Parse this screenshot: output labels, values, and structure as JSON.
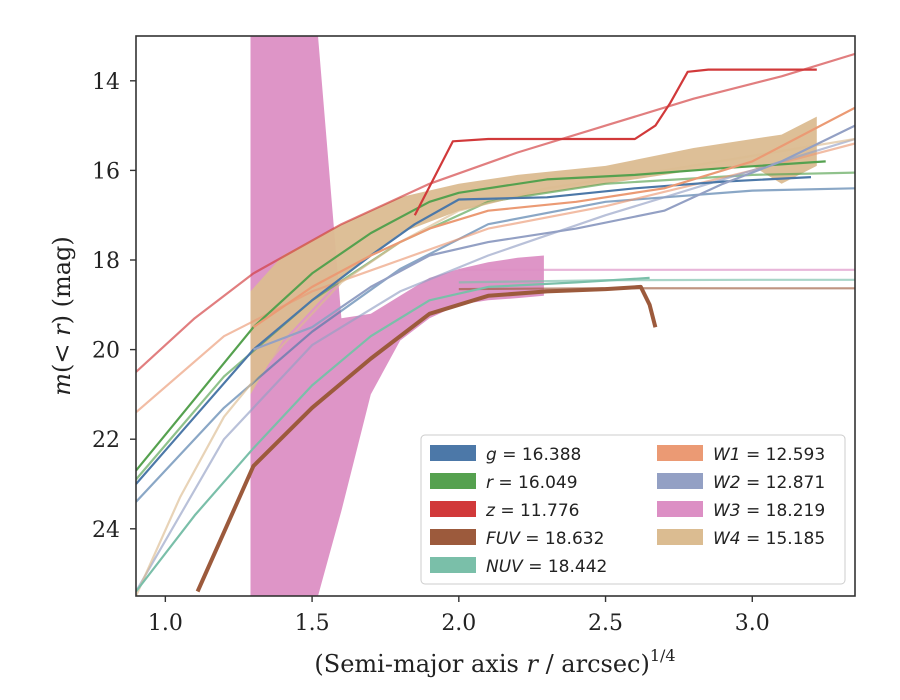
{
  "chart_data": {
    "type": "line",
    "xlabel": "(Semi-major axis r / arcsec)^{1/4}",
    "ylabel": "m(< r) (mag)",
    "xlim": [
      0.9,
      3.35
    ],
    "ylim": [
      25.5,
      13.0
    ],
    "y_inverted": true,
    "x_ticks": [
      "1.0",
      "1.5",
      "2.0",
      "2.5",
      "3.0"
    ],
    "y_ticks": [
      "14",
      "16",
      "18",
      "20",
      "22",
      "24"
    ],
    "legend_position": "lower-right",
    "legend": [
      {
        "band": "g",
        "value": "16.388",
        "color": "#4c78a8"
      },
      {
        "band": "r",
        "value": "16.049",
        "color": "#55a14f"
      },
      {
        "band": "z",
        "value": "11.776",
        "color": "#d1393a"
      },
      {
        "band": "FUV",
        "value": "18.632",
        "color": "#9c5a3c"
      },
      {
        "band": "NUV",
        "value": "18.442",
        "color": "#7abfa9"
      },
      {
        "band": "W1",
        "value": "12.593",
        "color": "#eb9a74"
      },
      {
        "band": "W2",
        "value": "12.871",
        "color": "#93a0c4"
      },
      {
        "band": "W3",
        "value": "18.219",
        "color": "#dc8fc4"
      },
      {
        "band": "W4",
        "value": "15.185",
        "color": "#dbbc91"
      }
    ],
    "series": [
      {
        "name": "g",
        "type": "observed",
        "x": [
          0.9,
          1.1,
          1.3,
          1.5,
          1.7,
          1.85,
          2.0,
          2.3,
          2.6,
          2.9,
          3.2
        ],
        "y": [
          23.0,
          21.5,
          20.0,
          18.9,
          17.9,
          17.2,
          16.65,
          16.6,
          16.4,
          16.25,
          16.15
        ]
      },
      {
        "name": "g",
        "type": "model",
        "x": [
          0.9,
          1.2,
          1.5,
          1.8,
          2.1,
          2.5,
          3.0,
          3.35
        ],
        "y": [
          23.4,
          21.3,
          19.6,
          18.2,
          17.2,
          16.7,
          16.45,
          16.4
        ]
      },
      {
        "name": "r",
        "type": "observed",
        "x": [
          0.9,
          1.1,
          1.3,
          1.5,
          1.7,
          1.9,
          2.0,
          2.3,
          2.6,
          2.9,
          3.25
        ],
        "y": [
          22.7,
          21.1,
          19.5,
          18.3,
          17.4,
          16.7,
          16.5,
          16.2,
          16.1,
          15.95,
          15.8
        ]
      },
      {
        "name": "r",
        "type": "model",
        "x": [
          0.9,
          1.2,
          1.5,
          1.8,
          2.1,
          2.5,
          3.0,
          3.35
        ],
        "y": [
          22.9,
          20.6,
          18.9,
          17.6,
          16.7,
          16.3,
          16.1,
          16.05
        ]
      },
      {
        "name": "z",
        "type": "observed",
        "x": [
          1.85,
          1.98,
          2.1,
          2.4,
          2.6,
          2.67,
          2.72,
          2.78,
          2.85,
          3.0,
          3.22
        ],
        "y": [
          17.0,
          15.35,
          15.3,
          15.3,
          15.3,
          15.0,
          14.5,
          13.8,
          13.75,
          13.75,
          13.75
        ]
      },
      {
        "name": "z",
        "type": "model",
        "x": [
          0.9,
          1.1,
          1.3,
          1.6,
          1.9,
          2.2,
          2.5,
          2.8,
          3.1,
          3.35
        ],
        "y": [
          20.5,
          19.3,
          18.3,
          17.2,
          16.3,
          15.6,
          15.0,
          14.4,
          13.9,
          13.4
        ]
      },
      {
        "name": "FUV",
        "type": "observed",
        "x": [
          1.11,
          1.3,
          1.5,
          1.7,
          1.9,
          2.1,
          2.3,
          2.5,
          2.62,
          2.65,
          2.67
        ],
        "y": [
          25.4,
          22.6,
          21.3,
          20.2,
          19.2,
          18.8,
          18.7,
          18.65,
          18.6,
          19.0,
          19.5
        ]
      },
      {
        "name": "FUV",
        "type": "model",
        "x": [
          2.0,
          2.5,
          3.0,
          3.35
        ],
        "y": [
          18.65,
          18.63,
          18.632,
          18.632
        ]
      },
      {
        "name": "NUV",
        "type": "observed",
        "x": [
          0.9,
          1.1,
          1.3,
          1.5,
          1.7,
          1.9,
          2.1,
          2.4,
          2.65
        ],
        "y": [
          25.4,
          23.7,
          22.2,
          20.8,
          19.7,
          18.9,
          18.6,
          18.5,
          18.4
        ]
      },
      {
        "name": "NUV",
        "type": "model",
        "x": [
          2.0,
          2.5,
          3.0,
          3.35
        ],
        "y": [
          18.5,
          18.45,
          18.442,
          18.442
        ]
      },
      {
        "name": "W1",
        "type": "observed",
        "x": [
          1.3,
          1.5,
          1.7,
          1.9,
          2.1,
          2.4,
          2.7,
          3.0,
          3.35
        ],
        "y": [
          19.5,
          18.6,
          17.9,
          17.3,
          16.9,
          16.7,
          16.4,
          15.8,
          14.6
        ]
      },
      {
        "name": "W1",
        "type": "model",
        "x": [
          0.9,
          1.2,
          1.5,
          1.8,
          2.1,
          2.5,
          3.0,
          3.35
        ],
        "y": [
          21.4,
          19.7,
          18.7,
          18.0,
          17.3,
          16.8,
          16.0,
          15.4
        ]
      },
      {
        "name": "W2",
        "type": "observed",
        "x": [
          1.3,
          1.5,
          1.7,
          1.9,
          2.1,
          2.4,
          2.7,
          2.9,
          3.1,
          3.35
        ],
        "y": [
          20.0,
          19.5,
          18.6,
          17.9,
          17.6,
          17.3,
          16.9,
          16.3,
          15.8,
          15.0
        ]
      },
      {
        "name": "W2",
        "type": "model",
        "x": [
          0.9,
          1.2,
          1.5,
          1.8,
          2.1,
          2.5,
          3.0,
          3.35
        ],
        "y": [
          25.4,
          22.0,
          19.9,
          18.7,
          17.9,
          17.0,
          16.0,
          15.3
        ]
      },
      {
        "name": "W3",
        "type": "observed_band",
        "x": [
          1.29,
          1.4,
          1.52,
          1.6,
          1.7,
          1.8,
          1.9,
          2.0,
          2.1,
          2.2,
          2.29
        ],
        "y_low": [
          25.5,
          25.5,
          25.5,
          23.6,
          21.0,
          19.8,
          19.3,
          19.0,
          18.9,
          18.85,
          18.8
        ],
        "y_high": [
          13.0,
          13.0,
          13.0,
          19.3,
          19.2,
          18.8,
          18.4,
          18.2,
          18.05,
          17.95,
          17.9
        ]
      },
      {
        "name": "W3",
        "type": "model",
        "x": [
          2.0,
          2.5,
          3.0,
          3.35
        ],
        "y": [
          18.22,
          18.219,
          18.219,
          18.219
        ]
      },
      {
        "name": "W4",
        "type": "observed_band",
        "x": [
          1.29,
          1.4,
          1.6,
          1.8,
          2.0,
          2.2,
          2.5,
          2.8,
          3.0,
          3.1,
          3.22
        ],
        "y_low": [
          21.0,
          19.8,
          18.4,
          17.4,
          16.9,
          16.6,
          16.3,
          16.0,
          15.9,
          16.3,
          15.9
        ],
        "y_high": [
          18.7,
          17.9,
          17.2,
          16.6,
          16.3,
          16.1,
          15.9,
          15.5,
          15.3,
          15.2,
          14.8
        ]
      },
      {
        "name": "W4",
        "type": "model",
        "x": [
          0.9,
          1.05,
          1.2,
          1.4,
          1.6,
          1.8,
          2.0,
          2.3,
          2.7,
          3.35
        ],
        "y": [
          25.5,
          23.3,
          21.5,
          19.9,
          18.5,
          17.6,
          16.9,
          16.4,
          16.0,
          15.3
        ]
      }
    ]
  }
}
